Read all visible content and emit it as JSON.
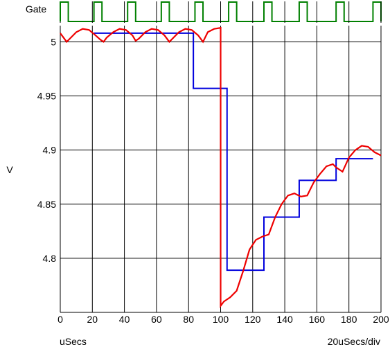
{
  "chart_data": {
    "type": "line",
    "gate_panel": {
      "label": "Gate",
      "color": "#008000",
      "pulses": [
        [
          0,
          5
        ],
        [
          21,
          26
        ],
        [
          42,
          47
        ],
        [
          63,
          68
        ],
        [
          84,
          89
        ],
        [
          105,
          110
        ],
        [
          127,
          132
        ],
        [
          149,
          154
        ],
        [
          172,
          177
        ],
        [
          195,
          200
        ]
      ]
    },
    "main_panel": {
      "ylabel": "V",
      "xlabel_left": "uSecs",
      "xlabel_right": "20uSecs/div",
      "xlim": [
        0,
        200
      ],
      "ylim": [
        4.75,
        5.015
      ],
      "y_ticks": [
        "5",
        "4.95",
        "4.9",
        "4.85",
        "4.8"
      ],
      "y_tick_values": [
        5.0,
        4.95,
        4.9,
        4.85,
        4.8
      ],
      "x_ticks": [
        "0",
        "20",
        "40",
        "60",
        "80",
        "100",
        "120",
        "140",
        "160",
        "180",
        "200"
      ],
      "x_tick_values": [
        0,
        20,
        40,
        60,
        80,
        100,
        120,
        140,
        160,
        180,
        200
      ],
      "grid": true,
      "series": [
        {
          "color": "#0000dd",
          "style": "step",
          "x": [
            21,
            83,
            83,
            104,
            104,
            127,
            127,
            149,
            149,
            172,
            172,
            195
          ],
          "y": [
            5.008,
            5.008,
            4.957,
            4.957,
            4.789,
            4.789,
            4.838,
            4.838,
            4.872,
            4.872,
            4.892,
            4.892
          ]
        },
        {
          "color": "#ee0000",
          "style": "line",
          "x": [
            0,
            2,
            4,
            6,
            10,
            14,
            18,
            22,
            25,
            27,
            29,
            33,
            37,
            41,
            45,
            47,
            49,
            53,
            57,
            61,
            65,
            68,
            70,
            74,
            78,
            82,
            86,
            89,
            92,
            96,
            100,
            100,
            102,
            106,
            110,
            114,
            118,
            122,
            126,
            130,
            134,
            138,
            142,
            146,
            150,
            154,
            158,
            162,
            166,
            170,
            172,
            176,
            180,
            184,
            188,
            192,
            196,
            200
          ],
          "y": [
            5.008,
            5.004,
            5.0,
            5.003,
            5.009,
            5.012,
            5.011,
            5.006,
            5.002,
            5.0,
            5.004,
            5.009,
            5.012,
            5.011,
            5.006,
            5.001,
            5.003,
            5.009,
            5.012,
            5.011,
            5.006,
            5.0,
            5.003,
            5.009,
            5.012,
            5.011,
            5.006,
            5.0,
            5.009,
            5.012,
            5.013,
            4.756,
            4.76,
            4.764,
            4.77,
            4.788,
            4.808,
            4.817,
            4.82,
            4.822,
            4.838,
            4.85,
            4.858,
            4.86,
            4.857,
            4.858,
            4.87,
            4.878,
            4.885,
            4.887,
            4.884,
            4.88,
            4.893,
            4.9,
            4.904,
            4.903,
            4.898,
            4.895
          ]
        }
      ]
    }
  }
}
